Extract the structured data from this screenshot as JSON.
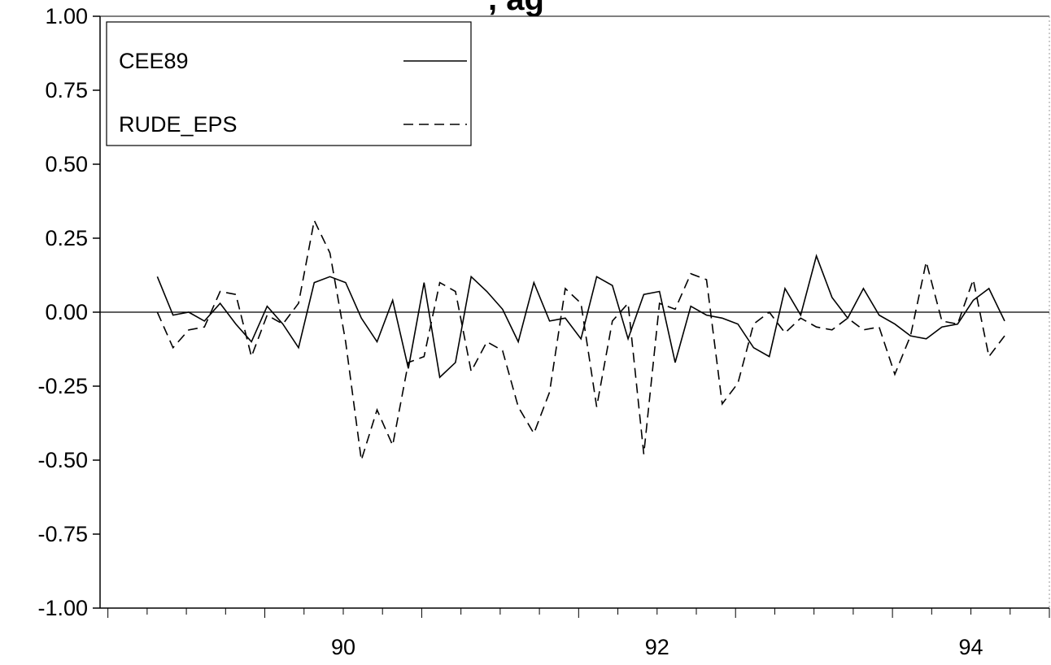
{
  "title_fragment": ", ag",
  "chart_data": {
    "type": "line",
    "title": "",
    "xlabel": "",
    "ylabel": "",
    "xlim": [
      88.95,
      95.0
    ],
    "ylim": [
      -1.0,
      1.0
    ],
    "yticks": [
      1.0,
      0.75,
      0.5,
      0.25,
      0.0,
      -0.25,
      -0.5,
      -0.75,
      -1.0
    ],
    "ytick_labels": [
      "1.00",
      "0.75",
      "0.50",
      "0.25",
      "0.00",
      "-0.25",
      "-0.50",
      "-0.75",
      "-1.00"
    ],
    "xticks": [
      90,
      92,
      94
    ],
    "xtick_labels": [
      "90",
      "92",
      "94"
    ],
    "x_minor_step": 0.25,
    "grid": false,
    "zero_line": true,
    "legend_position": "top-left",
    "series": [
      {
        "name": "CEE89",
        "style": "solid",
        "color": "#000000",
        "x": [
          89.315,
          89.415,
          89.515,
          89.615,
          89.715,
          89.815,
          89.915,
          90.015,
          90.115,
          90.215,
          90.315,
          90.415,
          90.515,
          90.615,
          90.715,
          90.815,
          90.915,
          91.015,
          91.115,
          91.215,
          91.315,
          91.415,
          91.515,
          91.615,
          91.715,
          91.815,
          91.915,
          92.015,
          92.115,
          92.215,
          92.315,
          92.415,
          92.515,
          92.615,
          92.715,
          92.815,
          92.915,
          93.015,
          93.115,
          93.215,
          93.315,
          93.415,
          93.515,
          93.615,
          93.715,
          93.815,
          93.915,
          94.015,
          94.115,
          94.215,
          94.315,
          94.415,
          94.515,
          94.615,
          94.715
        ],
        "values": [
          0.12,
          -0.01,
          0.0,
          -0.03,
          0.03,
          -0.04,
          -0.1,
          0.02,
          -0.04,
          -0.12,
          0.1,
          0.12,
          0.1,
          -0.02,
          -0.1,
          0.04,
          -0.19,
          0.1,
          -0.22,
          -0.17,
          0.12,
          0.07,
          0.01,
          -0.1,
          0.1,
          -0.03,
          -0.02,
          -0.09,
          0.12,
          0.09,
          -0.09,
          0.06,
          0.07,
          -0.17,
          0.02,
          -0.01,
          -0.02,
          -0.04,
          -0.12,
          -0.15,
          0.08,
          -0.01,
          0.19,
          0.05,
          -0.02,
          0.08,
          -0.01,
          -0.04,
          -0.08,
          -0.09,
          -0.05,
          -0.04,
          0.04,
          0.08,
          -0.03
        ]
      },
      {
        "name": "RUDE_EPS",
        "style": "dashed",
        "color": "#000000",
        "x": [
          89.315,
          89.415,
          89.515,
          89.615,
          89.715,
          89.815,
          89.915,
          90.015,
          90.115,
          90.215,
          90.315,
          90.415,
          90.515,
          90.615,
          90.715,
          90.815,
          90.915,
          91.015,
          91.115,
          91.215,
          91.315,
          91.415,
          91.515,
          91.615,
          91.715,
          91.815,
          91.915,
          92.015,
          92.115,
          92.215,
          92.315,
          92.415,
          92.515,
          92.615,
          92.715,
          92.815,
          92.915,
          93.015,
          93.115,
          93.215,
          93.315,
          93.415,
          93.515,
          93.615,
          93.715,
          93.815,
          93.915,
          94.015,
          94.115,
          94.215,
          94.315,
          94.415,
          94.515,
          94.615,
          94.715
        ],
        "values": [
          0.0,
          -0.12,
          -0.06,
          -0.05,
          0.07,
          0.06,
          -0.15,
          -0.01,
          -0.04,
          0.03,
          0.31,
          0.2,
          -0.1,
          -0.5,
          -0.33,
          -0.45,
          -0.17,
          -0.15,
          0.1,
          0.07,
          -0.2,
          -0.1,
          -0.13,
          -0.32,
          -0.41,
          -0.27,
          0.08,
          0.03,
          -0.32,
          -0.03,
          0.03,
          -0.48,
          0.03,
          0.01,
          0.13,
          0.11,
          -0.31,
          -0.24,
          -0.04,
          0.0,
          -0.07,
          -0.02,
          -0.05,
          -0.06,
          -0.02,
          -0.06,
          -0.05,
          -0.21,
          -0.08,
          0.17,
          -0.03,
          -0.04,
          0.11,
          -0.15,
          -0.08
        ]
      }
    ]
  }
}
